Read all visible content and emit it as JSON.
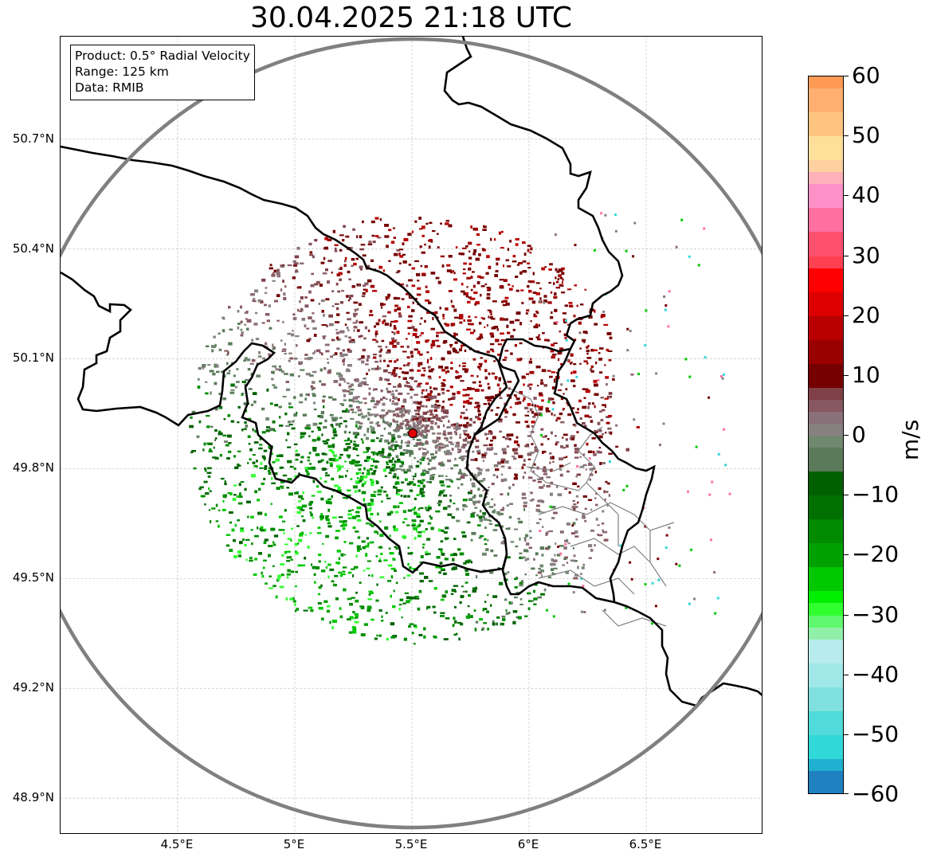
{
  "title": "30.04.2025 21:18 UTC",
  "info": {
    "product": "Product: 0.5° Radial Velocity",
    "range": "Range: 125 km",
    "source": "Data: RMIB"
  },
  "map": {
    "lat_range": [
      48.8,
      50.98
    ],
    "lon_range": [
      4.0,
      7.0
    ],
    "lat_ticks": [
      {
        "value": 48.9,
        "label": "48.9°N"
      },
      {
        "value": 49.2,
        "label": "49.2°N"
      },
      {
        "value": 49.5,
        "label": "49.5°N"
      },
      {
        "value": 49.8,
        "label": "49.8°N"
      },
      {
        "value": 50.1,
        "label": "50.1°N"
      },
      {
        "value": 50.4,
        "label": "50.4°N"
      },
      {
        "value": 50.7,
        "label": "50.7°N"
      }
    ],
    "lon_ticks": [
      {
        "value": 4.5,
        "label": "4.5°E"
      },
      {
        "value": 5.0,
        "label": "5°E"
      },
      {
        "value": 5.5,
        "label": "5.5°E"
      },
      {
        "value": 6.0,
        "label": "6°E"
      },
      {
        "value": 6.5,
        "label": "6.5°E"
      }
    ],
    "radar_site": {
      "lat": 49.91,
      "lon": 5.505
    },
    "range_km": 125,
    "colors": {
      "grid": "#bbbbbb",
      "border": "#000000",
      "range_ring": "#808080",
      "site_marker": "#e00000",
      "region_border": "#808080"
    }
  },
  "colorbar": {
    "unit": "m/s",
    "vmin": -60,
    "vmax": 60,
    "ticks": [
      {
        "value": 60,
        "label": "60"
      },
      {
        "value": 50,
        "label": "50"
      },
      {
        "value": 40,
        "label": "40"
      },
      {
        "value": 30,
        "label": "30"
      },
      {
        "value": 20,
        "label": "20"
      },
      {
        "value": 10,
        "label": "10"
      },
      {
        "value": 0,
        "label": "0"
      },
      {
        "value": -10,
        "label": "−10"
      },
      {
        "value": -20,
        "label": "−20"
      },
      {
        "value": -30,
        "label": "−30"
      },
      {
        "value": -40,
        "label": "−40"
      },
      {
        "value": -50,
        "label": "−50"
      },
      {
        "value": -60,
        "label": "−60"
      }
    ],
    "stops": [
      {
        "from": 58,
        "to": 60,
        "color": "#ff9a55"
      },
      {
        "from": 54,
        "to": 58,
        "color": "#ffb070"
      },
      {
        "from": 50,
        "to": 54,
        "color": "#ffc480"
      },
      {
        "from": 46,
        "to": 50,
        "color": "#ffe09a"
      },
      {
        "from": 44,
        "to": 46,
        "color": "#ffd0a0"
      },
      {
        "from": 42,
        "to": 44,
        "color": "#ffb0b8"
      },
      {
        "from": 38,
        "to": 42,
        "color": "#ff90c8"
      },
      {
        "from": 34,
        "to": 38,
        "color": "#ff70a0"
      },
      {
        "from": 30,
        "to": 34,
        "color": "#ff5070"
      },
      {
        "from": 28,
        "to": 30,
        "color": "#ff4050"
      },
      {
        "from": 24,
        "to": 28,
        "color": "#ff0000"
      },
      {
        "from": 20,
        "to": 24,
        "color": "#dd0000"
      },
      {
        "from": 16,
        "to": 20,
        "color": "#b80000"
      },
      {
        "from": 12,
        "to": 16,
        "color": "#9a0000"
      },
      {
        "from": 8,
        "to": 12,
        "color": "#750000"
      },
      {
        "from": 6,
        "to": 8,
        "color": "#804048"
      },
      {
        "from": 4,
        "to": 6,
        "color": "#875860"
      },
      {
        "from": 2,
        "to": 4,
        "color": "#8a7078"
      },
      {
        "from": 0,
        "to": 2,
        "color": "#888080"
      },
      {
        "from": -2,
        "to": 0,
        "color": "#708870"
      },
      {
        "from": -6,
        "to": -2,
        "color": "#5a7a5a"
      },
      {
        "from": -10,
        "to": -6,
        "color": "#006000"
      },
      {
        "from": -14,
        "to": -10,
        "color": "#007000"
      },
      {
        "from": -18,
        "to": -14,
        "color": "#008a00"
      },
      {
        "from": -22,
        "to": -18,
        "color": "#00a000"
      },
      {
        "from": -26,
        "to": -22,
        "color": "#00c800"
      },
      {
        "from": -28,
        "to": -26,
        "color": "#00ee00"
      },
      {
        "from": -30,
        "to": -28,
        "color": "#30ff30"
      },
      {
        "from": -32,
        "to": -30,
        "color": "#60f870"
      },
      {
        "from": -34,
        "to": -32,
        "color": "#90f0a8"
      },
      {
        "from": -38,
        "to": -34,
        "color": "#b8ecec"
      },
      {
        "from": -42,
        "to": -38,
        "color": "#a0e8e8"
      },
      {
        "from": -46,
        "to": -42,
        "color": "#80e0e0"
      },
      {
        "from": -50,
        "to": -46,
        "color": "#50dada"
      },
      {
        "from": -54,
        "to": -50,
        "color": "#30d8d8"
      },
      {
        "from": -56,
        "to": -54,
        "color": "#20b0d0"
      },
      {
        "from": -60,
        "to": -56,
        "color": "#2080c0"
      }
    ]
  }
}
